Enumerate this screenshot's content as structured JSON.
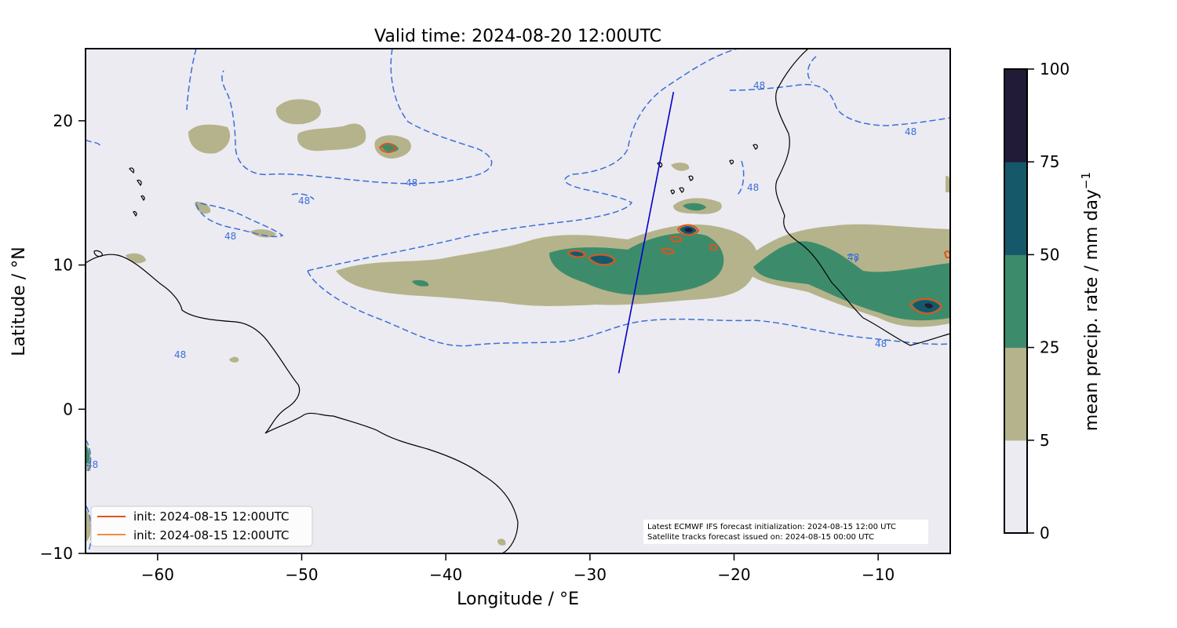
{
  "title": "Valid time: 2024-08-20 12:00UTC",
  "xlabel": "Longitude / °E",
  "ylabel": "Latitude / °N",
  "xlim": [
    -65,
    -5
  ],
  "ylim": [
    -10,
    25
  ],
  "xticks": [
    -60,
    -50,
    -40,
    -30,
    -20,
    -10
  ],
  "xtick_labels": [
    "−60",
    "−50",
    "−40",
    "−30",
    "−20",
    "−10"
  ],
  "yticks": [
    -10,
    0,
    10,
    20
  ],
  "ytick_labels": [
    "−10",
    "0",
    "10",
    "20"
  ],
  "colorbar": {
    "label": "mean precip. rate / mm day",
    "label_sup": "−1",
    "levels": [
      0,
      5,
      25,
      50,
      75,
      100
    ],
    "level_labels": [
      "0",
      "5",
      "25",
      "50",
      "75",
      "100"
    ],
    "colors": [
      "#ecebf1",
      "#b5b38b",
      "#3c8c6c",
      "#15586a",
      "#221b38"
    ]
  },
  "legend": {
    "entries": [
      {
        "label": "init: 2024-08-15 12:00UTC",
        "color": "#e0541c"
      },
      {
        "label": "init: 2024-08-15 12:00UTC",
        "color": "#f08c3c"
      }
    ]
  },
  "note": {
    "line1": "Latest ECMWF IFS forecast initialization: 2024-08-15 12:00 UTC",
    "line2": "Satellite tracks forecast issued on: 2024-08-15 00:00 UTC"
  },
  "contour_label": "48",
  "satellite_track": {
    "color": "#0000cc",
    "start": [
      -28,
      2.5
    ],
    "end": [
      -24.2,
      22
    ]
  },
  "colors": {
    "background": "#ecebf1",
    "contour": "#3b6fd8",
    "coastline": "#000000",
    "light": "#b5b38b",
    "mid": "#3c8c6c",
    "heavy": "#15586a",
    "extreme": "#221b38",
    "outline": "#e0541c"
  }
}
